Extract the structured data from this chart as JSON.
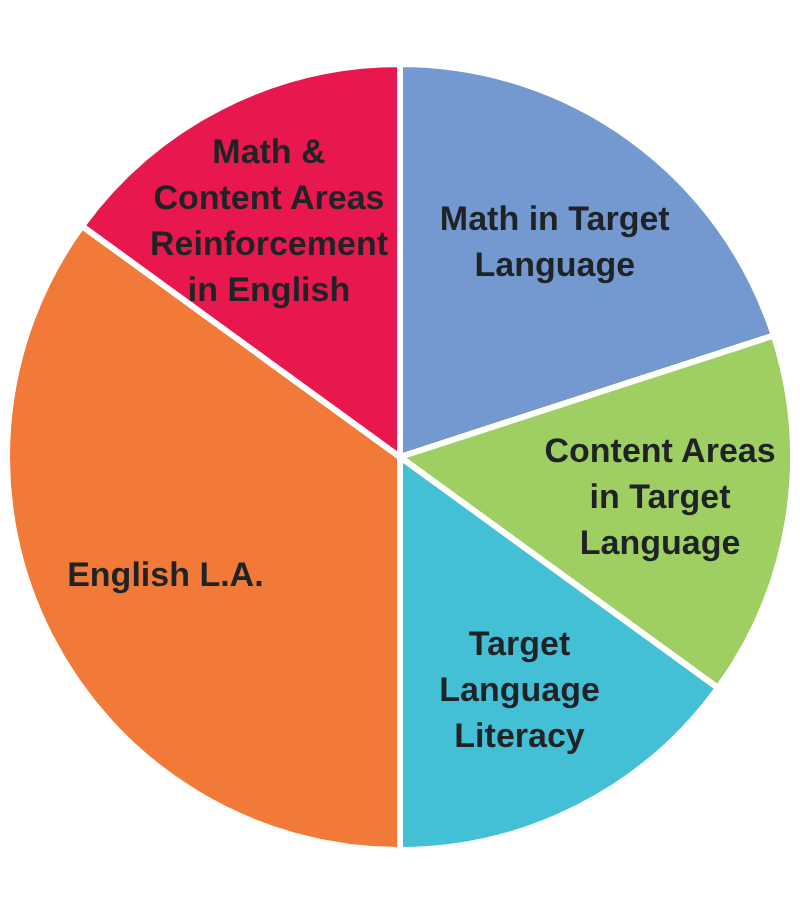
{
  "chart_data": {
    "type": "pie",
    "categories": [
      "Math in Target Language",
      "Content Areas in Target Language",
      "Target Language Literacy",
      "English L.A.",
      "Math & Content Areas Reinforcement in English"
    ],
    "values": [
      20,
      15,
      15,
      35,
      15
    ],
    "colors": [
      "#7399d0",
      "#9fce62",
      "#43bfd6",
      "#f27a38",
      "#e8174e"
    ]
  }
}
